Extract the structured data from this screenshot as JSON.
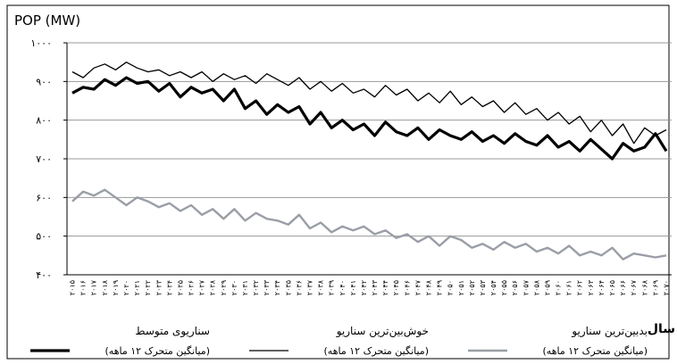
{
  "chart_data": {
    "type": "line",
    "y_axis_title": "POP (MW)",
    "x_axis_title": "سال",
    "ylim": [
      400,
      1000
    ],
    "yticks": [
      {
        "value": 1000,
        "label": "۱۰۰۰"
      },
      {
        "value": 900,
        "label": "۹۰۰"
      },
      {
        "value": 800,
        "label": "۸۰۰"
      },
      {
        "value": 700,
        "label": "۷۰۰"
      },
      {
        "value": 600,
        "label": "۶۰۰"
      },
      {
        "value": 500,
        "label": "۵۰۰"
      },
      {
        "value": 400,
        "label": "۴۰۰"
      }
    ],
    "grid": true,
    "categories": [
      "۲۰۱۵",
      "۲۰۱۶",
      "۲۰۱۷",
      "۲۰۱۸",
      "۲۰۱۹",
      "۲۰۲۰",
      "۲۰۲۱",
      "۲۰۲۲",
      "۲۰۲۳",
      "۲۰۲۴",
      "۲۰۲۵",
      "۲۰۲۶",
      "۲۰۲۷",
      "۲۰۲۸",
      "۲۰۲۹",
      "۲۰۳۰",
      "۲۰۳۱",
      "۲۰۳۲",
      "۲۰۳۳",
      "۲۰۳۴",
      "۲۰۳۵",
      "۲۰۳۶",
      "۲۰۳۷",
      "۲۰۳۸",
      "۲۰۳۹",
      "۲۰۴۰",
      "۲۰۴۱",
      "۲۰۴۲",
      "۲۰۴۳",
      "۲۰۴۴",
      "۲۰۴۵",
      "۲۰۴۶",
      "۲۰۴۷",
      "۲۰۴۸",
      "۲۰۴۹",
      "۲۰۵۰",
      "۲۰۵۱",
      "۲۰۵۲",
      "۲۰۵۳",
      "۲۰۵۴",
      "۲۰۵۵",
      "۲۰۵۶",
      "۲۰۵۷",
      "۲۰۵۸",
      "۲۰۵۹",
      "۲۰۶۰",
      "۲۰۶۱",
      "۲۰۶۲",
      "۲۰۶۳",
      "۲۰۶۴",
      "۲۰۶۵",
      "۲۰۶۶",
      "۲۰۶۷",
      "۲۰۶۸",
      "۲۰۶۹",
      "۲۰۷۰"
    ],
    "series": [
      {
        "name": "سناریوی متوسط",
        "note": "(میانگین متحرک ۱۲ ماهه)",
        "color": "#000000",
        "width": 3.2,
        "values": [
          870,
          885,
          880,
          905,
          890,
          910,
          895,
          900,
          875,
          895,
          860,
          885,
          870,
          880,
          850,
          880,
          830,
          850,
          815,
          840,
          820,
          835,
          790,
          820,
          780,
          800,
          775,
          790,
          760,
          795,
          770,
          760,
          780,
          750,
          775,
          760,
          750,
          770,
          745,
          760,
          740,
          765,
          745,
          735,
          760,
          730,
          745,
          720,
          750,
          725,
          700,
          740,
          720,
          730,
          765,
          720
        ]
      },
      {
        "name": "خوش‌بین‌ترین سناریو",
        "note": "(میانگین متحرک ۱۲ ماهه)",
        "color": "#000000",
        "width": 1.3,
        "values": [
          925,
          910,
          935,
          945,
          930,
          950,
          935,
          925,
          930,
          915,
          925,
          910,
          925,
          900,
          920,
          905,
          915,
          895,
          920,
          905,
          890,
          910,
          880,
          900,
          875,
          895,
          870,
          880,
          860,
          890,
          865,
          880,
          850,
          870,
          845,
          875,
          840,
          860,
          835,
          850,
          820,
          845,
          815,
          830,
          800,
          820,
          790,
          810,
          770,
          800,
          760,
          790,
          740,
          780,
          760,
          775
        ]
      },
      {
        "name": "بدبین‌ترین سناریو",
        "note": "(میانگین متحرک ۱۲ ماهه)",
        "color": "#9a9ea6",
        "width": 2.4,
        "values": [
          590,
          615,
          605,
          620,
          600,
          580,
          600,
          590,
          575,
          585,
          565,
          580,
          555,
          570,
          545,
          570,
          540,
          560,
          545,
          540,
          530,
          555,
          520,
          535,
          510,
          525,
          515,
          525,
          505,
          515,
          495,
          505,
          485,
          500,
          475,
          500,
          490,
          470,
          480,
          465,
          485,
          470,
          480,
          460,
          470,
          455,
          475,
          450,
          460,
          450,
          470,
          440,
          455,
          450,
          445,
          450
        ]
      }
    ]
  }
}
